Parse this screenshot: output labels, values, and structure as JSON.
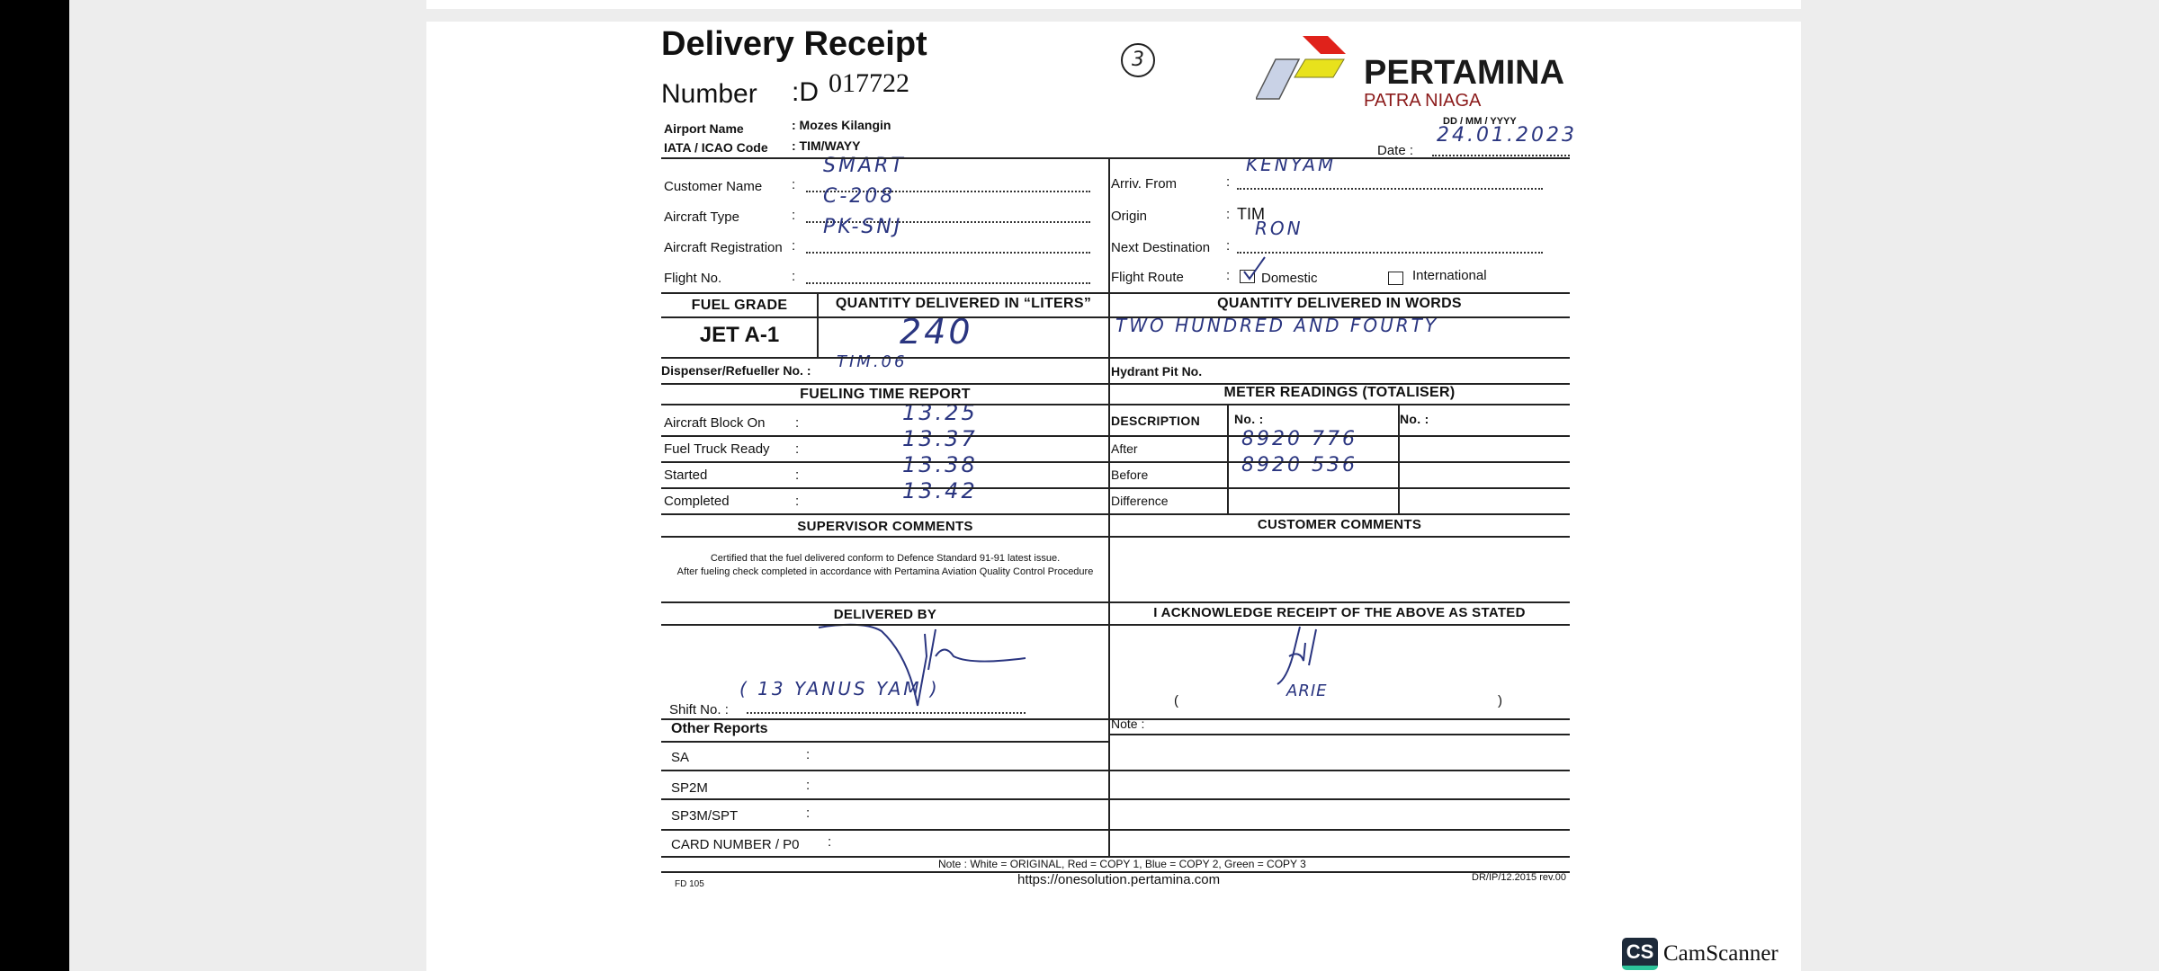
{
  "title": "Delivery Receipt",
  "number_label": "Number",
  "number_prefix": ":D",
  "number_value": "017722",
  "copy_mark": "3",
  "brand": {
    "name": "PERTAMINA",
    "sub": "PATRA NIAGA",
    "colors": {
      "red": "#e0221b",
      "yellow": "#e8e21c",
      "blue": "#b9c4d9",
      "sub_text": "#8b1a1a"
    }
  },
  "airport": {
    "name_label": "Airport Name",
    "name_value": ": Mozes Kilangin",
    "code_label": "IATA / ICAO Code",
    "code_value": ": TIM/WAYY"
  },
  "date": {
    "format": "DD  /  MM  /  YYYY",
    "label": "Date  :",
    "value": "24.01.2023"
  },
  "left_fields": [
    {
      "label": "Customer Name",
      "value": "SMART"
    },
    {
      "label": "Aircraft Type",
      "value": "C-208"
    },
    {
      "label": "Aircraft  Registration",
      "value": "PK-SNJ"
    },
    {
      "label": "Flight No.",
      "value": ""
    }
  ],
  "right_fields": [
    {
      "label": "Arriv. From",
      "value": "KENYAM"
    },
    {
      "label": "Origin",
      "value": "TIM"
    },
    {
      "label": "Next Destination",
      "value": "RON"
    }
  ],
  "flight_route": {
    "label": "Flight Route",
    "domestic": "Domestic",
    "international": "International",
    "domestic_checked": true,
    "international_checked": false
  },
  "fuel": {
    "grade_header": "FUEL GRADE",
    "liters_header": "QUANTITY DELIVERED IN “LITERS”",
    "words_header": "QUANTITY DELIVERED IN WORDS",
    "grade": "JET A-1",
    "liters": "240",
    "words": "TWO HUNDRED AND FOURTY"
  },
  "dispenser": {
    "label": "Dispenser/Refueller No.  :",
    "value": "TIM.06"
  },
  "hydrant": {
    "label": "Hydrant Pit No.",
    "value": ""
  },
  "fueling_time": {
    "header": "FUELING TIME REPORT",
    "rows": [
      {
        "label": "Aircraft Block On",
        "value": "13.25"
      },
      {
        "label": "Fuel Truck Ready",
        "value": "13.37"
      },
      {
        "label": "Started",
        "value": "13.38"
      },
      {
        "label": "Completed",
        "value": "13.42"
      }
    ]
  },
  "meter": {
    "header": "METER READINGS (TOTALISER)",
    "col_desc": "DESCRIPTION",
    "col_no1": "No. :",
    "col_no2": "No. :",
    "rows": [
      {
        "label": "After",
        "value": "8920 776"
      },
      {
        "label": "Before",
        "value": "8920 536"
      },
      {
        "label": "Difference",
        "value": ""
      }
    ]
  },
  "supervisor": {
    "header": "SUPERVISOR  COMMENTS",
    "line1": "Certified that the fuel delivered conform to Defence Standard 91-91 latest issue.",
    "line2": "After fueling check completed in accordance with Pertamina Aviation Quality Control Procedure"
  },
  "customer_comments_header": "CUSTOMER  COMMENTS",
  "delivered_by": {
    "header": "DELIVERED BY",
    "name": "( 13    YANUS YAM         )",
    "shift_label": "Shift No.  :"
  },
  "acknowledge": {
    "header": "I ACKNOWLEDGE RECEIPT OF THE ABOVE AS STATED",
    "name": "ARIE",
    "open": "(",
    "close": ")",
    "note_label": "Note :"
  },
  "other_reports": {
    "header": "Other Reports",
    "rows": [
      "SA",
      "SP2M",
      "SP3M/SPT",
      "CARD NUMBER / P0"
    ]
  },
  "footer": {
    "note": "Note :   White = ORIGINAL, Red = COPY 1,  Blue = COPY 2,  Green = COPY 3",
    "url": "https://onesolution.pertamina.com",
    "form_code": "FD 105",
    "revision": "DR/IP/12.2015 rev.00"
  },
  "scanner": {
    "logo": "CS",
    "name": "CamScanner"
  }
}
